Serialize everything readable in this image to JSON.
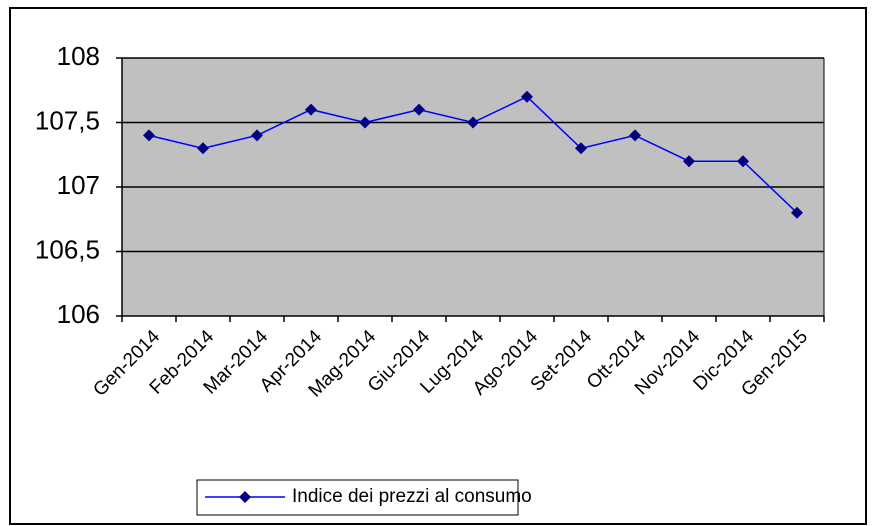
{
  "chart_data": {
    "type": "line",
    "categories": [
      "Gen-2014",
      "Feb-2014",
      "Mar-2014",
      "Apr-2014",
      "Mag-2014",
      "Giu-2014",
      "Lug-2014",
      "Ago-2014",
      "Set-2014",
      "Ott-2014",
      "Nov-2014",
      "Dic-2014",
      "Gen-2015"
    ],
    "series": [
      {
        "name": "Indice dei prezzi al consumo",
        "color": "#0000ff",
        "marker_color": "#000080",
        "values": [
          107.4,
          107.3,
          107.4,
          107.6,
          107.5,
          107.6,
          107.5,
          107.7,
          107.3,
          107.4,
          107.2,
          107.2,
          106.8
        ]
      }
    ],
    "ylim": [
      106,
      108
    ],
    "yticks": [
      106,
      {
        "value": 106.5,
        "label": "106,5"
      },
      107,
      {
        "value": 107.5,
        "label": "107,5"
      },
      108
    ],
    "grid": true,
    "legend": "bottom",
    "plot_background": "#c0c0c0"
  }
}
